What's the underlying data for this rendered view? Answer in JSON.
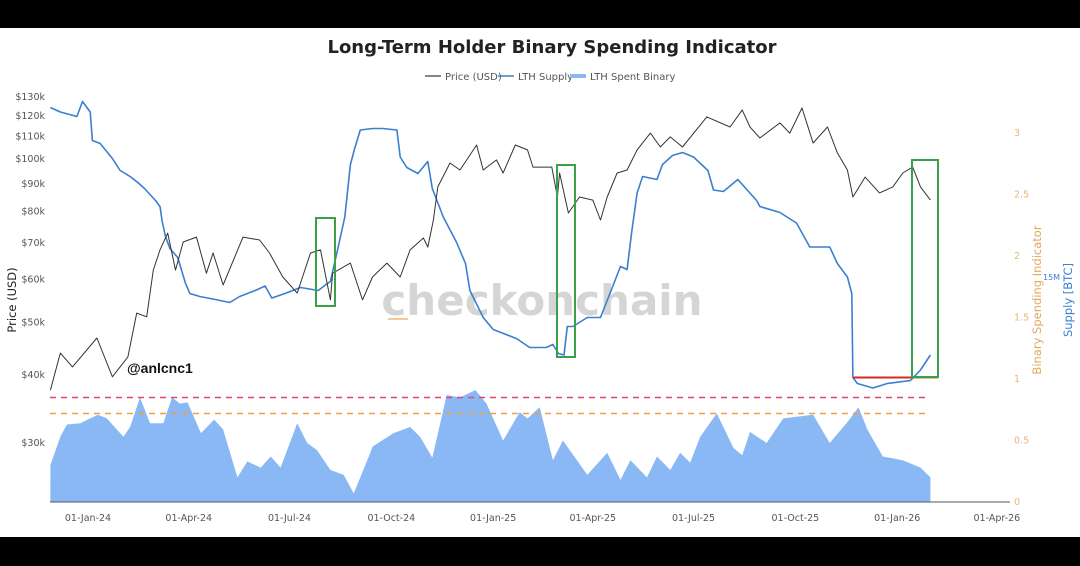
{
  "chart_data": {
    "type": "line",
    "title": "Long-Term Holder Binary Spending Indicator",
    "legend": {
      "placement": "top-center",
      "entries": [
        "Price (USD)",
        "LTH Supply",
        "LTH Spent Binary"
      ]
    },
    "yaxis_left": {
      "label": "Price (USD)",
      "scale": "log",
      "ticks": [
        "$130k",
        "$120k",
        "$110k",
        "$100k",
        "$90k",
        "$80k",
        "$70k",
        "$60k",
        "$50k",
        "$40k",
        "$30k"
      ],
      "tick_values": [
        130000,
        120000,
        110000,
        100000,
        90000,
        80000,
        70000,
        60000,
        50000,
        40000,
        30000
      ]
    },
    "yaxis_right_binary": {
      "label": "Binary Spending Indicator",
      "ticks": [
        "3",
        "2.5",
        "2",
        "1.5",
        "1",
        "0.5",
        "0"
      ],
      "tick_values": [
        3,
        2.5,
        2,
        1.5,
        1,
        0.5,
        0
      ],
      "range": [
        0,
        3
      ]
    },
    "yaxis_right_supply": {
      "label": "Supply [BTC]",
      "ticks": [
        "15M"
      ],
      "tick_values": [
        15
      ]
    },
    "xaxis": {
      "ticks": [
        "01-Jan-24",
        "01-Apr-24",
        "01-Jul-24",
        "01-Oct-24",
        "01-Jan-25",
        "01-Apr-25",
        "01-Jul-25",
        "01-Oct-25",
        "01-Jan-26",
        "01-Apr-26"
      ],
      "tick_dates": [
        "2024-01-01",
        "2024-04-01",
        "2024-07-01",
        "2024-10-01",
        "2025-01-01",
        "2025-04-01",
        "2025-07-01",
        "2025-10-01",
        "2026-01-01",
        "2026-04-01"
      ]
    },
    "grid": false,
    "colors": {
      "price": "#333333",
      "supply": "#3a7fd0",
      "binary": "#8ab8f5",
      "threshold_high": "#e0457a",
      "threshold_low": "#f0a040",
      "highlight_box": "#3aa04a",
      "supply_floor": "#d42a2a"
    },
    "thresholds": [
      {
        "value": 0.85,
        "color": "#e0457a"
      },
      {
        "value": 0.72,
        "color": "#f0a040"
      }
    ],
    "supply_floor_millions": 14.33,
    "series": [
      {
        "name": "Price (USD)",
        "points": [
          [
            "2023-11-28",
            37500
          ],
          [
            "2023-12-07",
            43900
          ],
          [
            "2023-12-18",
            41400
          ],
          [
            "2024-01-09",
            46800
          ],
          [
            "2024-01-23",
            39700
          ],
          [
            "2024-02-06",
            43200
          ],
          [
            "2024-02-14",
            52000
          ],
          [
            "2024-02-23",
            51200
          ],
          [
            "2024-02-29",
            62400
          ],
          [
            "2024-03-06",
            68000
          ],
          [
            "2024-03-13",
            73000
          ],
          [
            "2024-03-20",
            62400
          ],
          [
            "2024-03-27",
            70300
          ],
          [
            "2024-04-08",
            71800
          ],
          [
            "2024-04-17",
            61600
          ],
          [
            "2024-04-23",
            67100
          ],
          [
            "2024-05-02",
            58600
          ],
          [
            "2024-05-20",
            71800
          ],
          [
            "2024-06-04",
            70900
          ],
          [
            "2024-06-13",
            67100
          ],
          [
            "2024-06-25",
            60600
          ],
          [
            "2024-07-08",
            56600
          ],
          [
            "2024-07-20",
            67100
          ],
          [
            "2024-07-29",
            68000
          ],
          [
            "2024-08-07",
            55000
          ],
          [
            "2024-08-09",
            61600
          ],
          [
            "2024-08-25",
            64300
          ],
          [
            "2024-09-05",
            55000
          ],
          [
            "2024-09-14",
            60600
          ],
          [
            "2024-09-27",
            64300
          ],
          [
            "2024-10-09",
            60600
          ],
          [
            "2024-10-18",
            68000
          ],
          [
            "2024-10-30",
            71500
          ],
          [
            "2024-11-03",
            68800
          ],
          [
            "2024-11-08",
            77200
          ],
          [
            "2024-11-12",
            88800
          ],
          [
            "2024-11-23",
            98300
          ],
          [
            "2024-12-02",
            95400
          ],
          [
            "2024-12-17",
            106100
          ],
          [
            "2024-12-23",
            95400
          ],
          [
            "2025-01-04",
            99600
          ],
          [
            "2025-01-10",
            94200
          ],
          [
            "2025-01-21",
            106100
          ],
          [
            "2025-02-01",
            103900
          ],
          [
            "2025-02-06",
            96600
          ],
          [
            "2025-02-23",
            96600
          ],
          [
            "2025-02-28",
            85100
          ],
          [
            "2025-03-02",
            94200
          ],
          [
            "2025-03-10",
            79500
          ],
          [
            "2025-03-20",
            85100
          ],
          [
            "2025-04-01",
            84000
          ],
          [
            "2025-04-08",
            77200
          ],
          [
            "2025-04-14",
            85100
          ],
          [
            "2025-04-23",
            94200
          ],
          [
            "2025-05-02",
            95400
          ],
          [
            "2025-05-11",
            103900
          ],
          [
            "2025-05-23",
            111600
          ],
          [
            "2025-06-01",
            105200
          ],
          [
            "2025-06-10",
            109800
          ],
          [
            "2025-06-21",
            105200
          ],
          [
            "2025-07-13",
            119500
          ],
          [
            "2025-08-03",
            114500
          ],
          [
            "2025-08-14",
            123100
          ],
          [
            "2025-08-21",
            114500
          ],
          [
            "2025-08-30",
            109300
          ],
          [
            "2025-09-17",
            116500
          ],
          [
            "2025-09-26",
            111600
          ],
          [
            "2025-10-07",
            124100
          ],
          [
            "2025-10-17",
            107000
          ],
          [
            "2025-10-30",
            114500
          ],
          [
            "2025-11-08",
            102600
          ],
          [
            "2025-11-17",
            95400
          ],
          [
            "2025-11-22",
            85100
          ],
          [
            "2025-12-03",
            92600
          ],
          [
            "2025-12-16",
            86600
          ],
          [
            "2025-12-28",
            88800
          ],
          [
            "2026-01-06",
            94200
          ],
          [
            "2026-01-15",
            96600
          ],
          [
            "2026-01-22",
            88800
          ],
          [
            "2026-01-31",
            84000
          ]
        ]
      },
      {
        "name": "LTH Supply",
        "unit": "M BTC",
        "points": [
          [
            "2023-11-28",
            16.13
          ],
          [
            "2023-12-07",
            16.1
          ],
          [
            "2023-12-22",
            16.07
          ],
          [
            "2023-12-27",
            16.17
          ],
          [
            "2024-01-03",
            16.1
          ],
          [
            "2024-01-05",
            15.91
          ],
          [
            "2024-01-12",
            15.89
          ],
          [
            "2024-01-23",
            15.79
          ],
          [
            "2024-01-30",
            15.71
          ],
          [
            "2024-02-08",
            15.67
          ],
          [
            "2024-02-15",
            15.63
          ],
          [
            "2024-02-21",
            15.59
          ],
          [
            "2024-03-02",
            15.51
          ],
          [
            "2024-03-06",
            15.47
          ],
          [
            "2024-03-08",
            15.37
          ],
          [
            "2024-03-11",
            15.27
          ],
          [
            "2024-03-15",
            15.19
          ],
          [
            "2024-03-22",
            15.13
          ],
          [
            "2024-03-29",
            14.96
          ],
          [
            "2024-04-02",
            14.89
          ],
          [
            "2024-04-11",
            14.87
          ],
          [
            "2024-04-25",
            14.85
          ],
          [
            "2024-05-08",
            14.83
          ],
          [
            "2024-05-17",
            14.87
          ],
          [
            "2024-05-31",
            14.91
          ],
          [
            "2024-06-09",
            14.94
          ],
          [
            "2024-06-15",
            14.86
          ],
          [
            "2024-06-27",
            14.89
          ],
          [
            "2024-07-11",
            14.93
          ],
          [
            "2024-07-27",
            14.91
          ],
          [
            "2024-08-03",
            14.95
          ],
          [
            "2024-08-07",
            14.97
          ],
          [
            "2024-08-14",
            15.2
          ],
          [
            "2024-08-20",
            15.4
          ],
          [
            "2024-08-25",
            15.75
          ],
          [
            "2024-08-29",
            15.86
          ],
          [
            "2024-09-03",
            15.98
          ],
          [
            "2024-09-14",
            15.99
          ],
          [
            "2024-09-23",
            15.99
          ],
          [
            "2024-10-06",
            15.98
          ],
          [
            "2024-10-09",
            15.8
          ],
          [
            "2024-10-15",
            15.73
          ],
          [
            "2024-10-25",
            15.69
          ],
          [
            "2024-11-03",
            15.77
          ],
          [
            "2024-11-07",
            15.59
          ],
          [
            "2024-11-17",
            15.4
          ],
          [
            "2024-11-29",
            15.23
          ],
          [
            "2024-12-07",
            15.09
          ],
          [
            "2024-12-11",
            14.91
          ],
          [
            "2024-12-23",
            14.73
          ],
          [
            "2025-01-01",
            14.65
          ],
          [
            "2025-01-22",
            14.59
          ],
          [
            "2025-02-03",
            14.53
          ],
          [
            "2025-02-18",
            14.53
          ],
          [
            "2025-02-24",
            14.55
          ],
          [
            "2025-03-01",
            14.49
          ],
          [
            "2025-03-06",
            14.48
          ],
          [
            "2025-03-09",
            14.67
          ],
          [
            "2025-03-14",
            14.67
          ],
          [
            "2025-03-27",
            14.73
          ],
          [
            "2025-04-08",
            14.73
          ],
          [
            "2025-04-26",
            15.07
          ],
          [
            "2025-05-02",
            15.05
          ],
          [
            "2025-05-06",
            15.29
          ],
          [
            "2025-05-11",
            15.56
          ],
          [
            "2025-05-16",
            15.67
          ],
          [
            "2025-05-29",
            15.65
          ],
          [
            "2025-06-03",
            15.75
          ],
          [
            "2025-06-12",
            15.81
          ],
          [
            "2025-06-21",
            15.83
          ],
          [
            "2025-07-01",
            15.8
          ],
          [
            "2025-07-14",
            15.71
          ],
          [
            "2025-07-19",
            15.58
          ],
          [
            "2025-07-28",
            15.57
          ],
          [
            "2025-08-10",
            15.65
          ],
          [
            "2025-08-27",
            15.51
          ],
          [
            "2025-08-30",
            15.47
          ],
          [
            "2025-09-17",
            15.43
          ],
          [
            "2025-10-02",
            15.36
          ],
          [
            "2025-10-14",
            15.2
          ],
          [
            "2025-11-01",
            15.2
          ],
          [
            "2025-11-08",
            15.09
          ],
          [
            "2025-11-17",
            15.0
          ],
          [
            "2025-11-21",
            14.89
          ],
          [
            "2025-11-22",
            14.33
          ],
          [
            "2025-11-26",
            14.29
          ],
          [
            "2025-12-10",
            14.26
          ],
          [
            "2025-12-23",
            14.29
          ],
          [
            "2026-01-13",
            14.31
          ],
          [
            "2026-01-22",
            14.38
          ],
          [
            "2026-01-31",
            14.48
          ]
        ]
      },
      {
        "name": "LTH Spent Binary",
        "points": [
          [
            "2023-11-28",
            0.3
          ],
          [
            "2023-12-07",
            0.53
          ],
          [
            "2023-12-13",
            0.63
          ],
          [
            "2023-12-25",
            0.64
          ],
          [
            "2024-01-03",
            0.68
          ],
          [
            "2024-01-10",
            0.71
          ],
          [
            "2024-01-18",
            0.68
          ],
          [
            "2024-02-02",
            0.53
          ],
          [
            "2024-02-08",
            0.61
          ],
          [
            "2024-02-17",
            0.85
          ],
          [
            "2024-02-26",
            0.64
          ],
          [
            "2024-03-09",
            0.64
          ],
          [
            "2024-03-17",
            0.85
          ],
          [
            "2024-03-24",
            0.8
          ],
          [
            "2024-03-31",
            0.81
          ],
          [
            "2024-04-12",
            0.56
          ],
          [
            "2024-04-24",
            0.67
          ],
          [
            "2024-05-02",
            0.59
          ],
          [
            "2024-05-15",
            0.2
          ],
          [
            "2024-05-24",
            0.33
          ],
          [
            "2024-06-05",
            0.28
          ],
          [
            "2024-06-14",
            0.37
          ],
          [
            "2024-06-23",
            0.28
          ],
          [
            "2024-07-08",
            0.64
          ],
          [
            "2024-07-17",
            0.48
          ],
          [
            "2024-07-26",
            0.42
          ],
          [
            "2024-08-07",
            0.26
          ],
          [
            "2024-08-19",
            0.22
          ],
          [
            "2024-08-28",
            0.07
          ],
          [
            "2024-09-03",
            0.2
          ],
          [
            "2024-09-12",
            0.4
          ],
          [
            "2024-09-14",
            0.45
          ],
          [
            "2024-10-03",
            0.56
          ],
          [
            "2024-10-18",
            0.61
          ],
          [
            "2024-10-27",
            0.53
          ],
          [
            "2024-11-07",
            0.36
          ],
          [
            "2024-11-20",
            0.87
          ],
          [
            "2024-12-02",
            0.85
          ],
          [
            "2024-12-16",
            0.91
          ],
          [
            "2024-12-26",
            0.8
          ],
          [
            "2025-01-10",
            0.5
          ],
          [
            "2025-01-25",
            0.73
          ],
          [
            "2025-02-01",
            0.68
          ],
          [
            "2025-02-12",
            0.77
          ],
          [
            "2025-02-24",
            0.34
          ],
          [
            "2025-03-05",
            0.5
          ],
          [
            "2025-03-27",
            0.22
          ],
          [
            "2025-04-14",
            0.4
          ],
          [
            "2025-04-26",
            0.18
          ],
          [
            "2025-05-05",
            0.34
          ],
          [
            "2025-05-20",
            0.2
          ],
          [
            "2025-05-29",
            0.37
          ],
          [
            "2025-06-10",
            0.26
          ],
          [
            "2025-06-19",
            0.4
          ],
          [
            "2025-06-28",
            0.32
          ],
          [
            "2025-07-07",
            0.53
          ],
          [
            "2025-07-22",
            0.72
          ],
          [
            "2025-08-06",
            0.44
          ],
          [
            "2025-08-14",
            0.38
          ],
          [
            "2025-08-21",
            0.57
          ],
          [
            "2025-09-05",
            0.48
          ],
          [
            "2025-09-20",
            0.68
          ],
          [
            "2025-10-17",
            0.71
          ],
          [
            "2025-11-01",
            0.48
          ],
          [
            "2025-11-17",
            0.65
          ],
          [
            "2025-11-27",
            0.77
          ],
          [
            "2025-12-05",
            0.59
          ],
          [
            "2025-12-19",
            0.37
          ],
          [
            "2026-01-06",
            0.34
          ],
          [
            "2026-01-22",
            0.28
          ],
          [
            "2026-01-31",
            0.2
          ]
        ]
      }
    ],
    "annotations": {
      "handle": "@anlcnc1",
      "watermark": "checkonchain"
    }
  }
}
